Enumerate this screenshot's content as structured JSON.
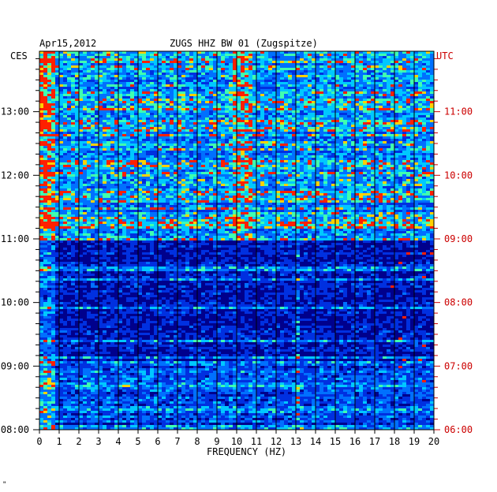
{
  "header": {
    "date": "Apr15,2012",
    "station": "ZUGS HHZ BW 01 (Zugspitze)",
    "left_zone": "CES",
    "right_zone": "UTC"
  },
  "footer_mark": "\"",
  "colors": {
    "background": "#00008c",
    "text": "#000000",
    "utc_text": "#cc0000",
    "gridline": "#000000"
  },
  "chart_data": {
    "type": "heatmap",
    "title": "ZUGS HHZ BW 01 (Zugspitze)",
    "date": "Apr15,2012",
    "xlabel": "FREQUENCY (HZ)",
    "xlim": [
      0,
      20
    ],
    "x_ticks": [
      "0",
      "1",
      "2",
      "3",
      "4",
      "5",
      "6",
      "7",
      "8",
      "9",
      "10",
      "11",
      "12",
      "13",
      "14",
      "15",
      "16",
      "17",
      "18",
      "19",
      "20"
    ],
    "y_left_ticks": [
      "08:00",
      "09:00",
      "10:00",
      "11:00",
      "12:00",
      "13:00"
    ],
    "y_right_ticks": [
      "06:00",
      "07:00",
      "08:00",
      "09:00",
      "10:00",
      "11:00"
    ],
    "ylim_local_hours": [
      8,
      13.95
    ],
    "grid": true,
    "bands": [
      {
        "from": 11.0,
        "to": 13.95,
        "level": "high"
      },
      {
        "from": 10.35,
        "to": 11.0,
        "level": "low"
      },
      {
        "from": 9.9,
        "to": 10.35,
        "level": "low"
      },
      {
        "from": 9.1,
        "to": 9.9,
        "level": "low"
      },
      {
        "from": 8.0,
        "to": 9.1,
        "level": "medium"
      }
    ]
  }
}
